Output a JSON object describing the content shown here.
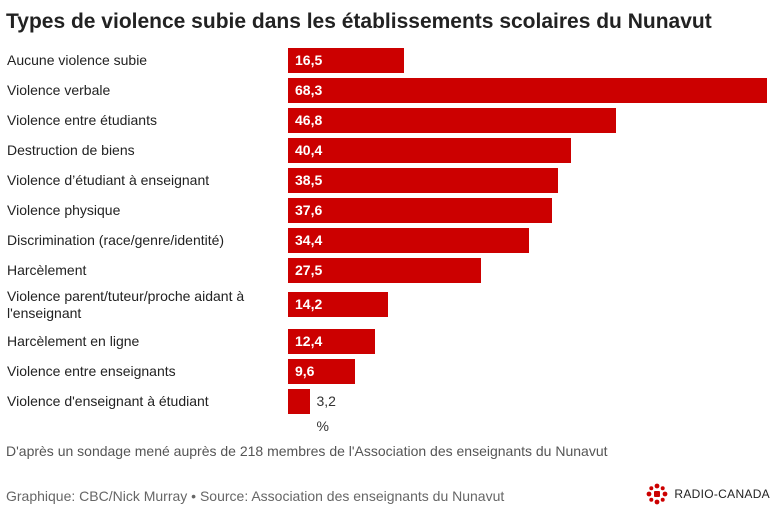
{
  "chart_data": {
    "type": "bar",
    "orientation": "horizontal",
    "title": "Types de violence subie dans les établissements scolaires du Nunavut",
    "categories": [
      "Aucune violence subie",
      "Violence verbale",
      "Violence entre étudiants",
      "Destruction de biens",
      "Violence d’étudiant à enseignant",
      "Violence physique",
      "Discrimination (race/genre/identité)",
      "Harcèlement",
      "Violence parent/tuteur/proche aidant à l'enseignant",
      "Harcèlement en ligne",
      "Violence entre enseignants",
      "Violence d'enseignant à étudiant"
    ],
    "values": [
      16.5,
      68.3,
      46.8,
      40.4,
      38.5,
      37.6,
      34.4,
      27.5,
      14.2,
      12.4,
      9.6,
      3.2
    ],
    "value_labels": [
      "16,5 %",
      "68,3 %",
      "46,8 %",
      "40,4 %",
      "38,5 %",
      "37,6 %",
      "34,4 %",
      "27,5 %",
      "14,2 %",
      "12,4 %",
      "9,6 %",
      "3,2 %"
    ],
    "xlim": [
      0,
      68.3
    ],
    "bar_color": "#cc0000",
    "grid": false,
    "legend": "none"
  },
  "footer": {
    "note": "D'après un sondage mené auprès de 218 membres de l'Association des enseignants du Nunavut",
    "credit": "Graphique: CBC/Nick Murray • Source: Association des enseignants du Nunavut",
    "logo_text": "RADIO-CANADA",
    "logo_icon": "radio-canada-gem-icon",
    "logo_color": "#cc0000"
  }
}
